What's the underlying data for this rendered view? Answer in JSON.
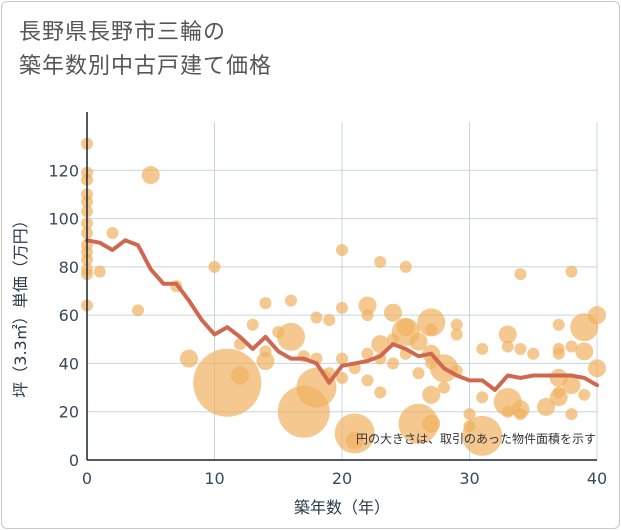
{
  "chart_data": {
    "type": "scatter",
    "title_line1": "長野県長野市三輪の",
    "title_line2": "築年数別中古戸建て価格",
    "xlabel": "築年数（年）",
    "ylabel": "坪（3.3㎡）単価（万円）",
    "xlim": [
      0,
      40
    ],
    "ylim": [
      0,
      140
    ],
    "xticks": [
      "0",
      "10",
      "20",
      "30",
      "40"
    ],
    "yticks": [
      "0",
      "20",
      "40",
      "60",
      "80",
      "100",
      "120"
    ],
    "grid": true,
    "note": "円の大きさは、取引のあった物件面積を示す",
    "colors": {
      "bubble": "#f0b060",
      "line": "#d06850",
      "grid": "#c8d4e0"
    },
    "scatter_points": [
      {
        "x": 0,
        "y": 131,
        "s": 1
      },
      {
        "x": 0,
        "y": 119,
        "s": 1
      },
      {
        "x": 0,
        "y": 116,
        "s": 1
      },
      {
        "x": 0,
        "y": 110,
        "s": 1
      },
      {
        "x": 0,
        "y": 107,
        "s": 1
      },
      {
        "x": 0,
        "y": 103,
        "s": 1
      },
      {
        "x": 0,
        "y": 98,
        "s": 1
      },
      {
        "x": 0,
        "y": 94,
        "s": 1
      },
      {
        "x": 0,
        "y": 89,
        "s": 1
      },
      {
        "x": 0,
        "y": 86,
        "s": 1
      },
      {
        "x": 0,
        "y": 83,
        "s": 1
      },
      {
        "x": 0,
        "y": 79,
        "s": 1
      },
      {
        "x": 0,
        "y": 77,
        "s": 1
      },
      {
        "x": 0,
        "y": 64,
        "s": 1
      },
      {
        "x": 1,
        "y": 78,
        "s": 1
      },
      {
        "x": 2,
        "y": 94,
        "s": 1
      },
      {
        "x": 4,
        "y": 62,
        "s": 1
      },
      {
        "x": 5,
        "y": 118,
        "s": 2
      },
      {
        "x": 7,
        "y": 72,
        "s": 1
      },
      {
        "x": 8,
        "y": 42,
        "s": 2
      },
      {
        "x": 10,
        "y": 80,
        "s": 1
      },
      {
        "x": 11,
        "y": 32,
        "s": 6
      },
      {
        "x": 12,
        "y": 35,
        "s": 2
      },
      {
        "x": 12,
        "y": 48,
        "s": 1
      },
      {
        "x": 13,
        "y": 56,
        "s": 1
      },
      {
        "x": 14,
        "y": 65,
        "s": 1
      },
      {
        "x": 14,
        "y": 41,
        "s": 2
      },
      {
        "x": 14,
        "y": 45,
        "s": 1
      },
      {
        "x": 15,
        "y": 53,
        "s": 1
      },
      {
        "x": 16,
        "y": 51,
        "s": 3
      },
      {
        "x": 16,
        "y": 66,
        "s": 1
      },
      {
        "x": 17,
        "y": 20,
        "s": 5
      },
      {
        "x": 17,
        "y": 43,
        "s": 1
      },
      {
        "x": 18,
        "y": 30,
        "s": 4
      },
      {
        "x": 18,
        "y": 42,
        "s": 1
      },
      {
        "x": 18,
        "y": 59,
        "s": 1
      },
      {
        "x": 19,
        "y": 58,
        "s": 1
      },
      {
        "x": 19,
        "y": 36,
        "s": 1
      },
      {
        "x": 20,
        "y": 87,
        "s": 1
      },
      {
        "x": 20,
        "y": 63,
        "s": 1
      },
      {
        "x": 20,
        "y": 42,
        "s": 1
      },
      {
        "x": 20,
        "y": 34,
        "s": 1
      },
      {
        "x": 21,
        "y": 11,
        "s": 4
      },
      {
        "x": 21,
        "y": 8,
        "s": 2
      },
      {
        "x": 21,
        "y": 38,
        "s": 1
      },
      {
        "x": 22,
        "y": 64,
        "s": 2
      },
      {
        "x": 22,
        "y": 60,
        "s": 1
      },
      {
        "x": 22,
        "y": 44,
        "s": 1
      },
      {
        "x": 22,
        "y": 33,
        "s": 1
      },
      {
        "x": 23,
        "y": 82,
        "s": 1
      },
      {
        "x": 23,
        "y": 48,
        "s": 2
      },
      {
        "x": 23,
        "y": 42,
        "s": 1
      },
      {
        "x": 23,
        "y": 28,
        "s": 1
      },
      {
        "x": 24,
        "y": 61,
        "s": 2
      },
      {
        "x": 24,
        "y": 50,
        "s": 1
      },
      {
        "x": 24,
        "y": 40,
        "s": 1
      },
      {
        "x": 25,
        "y": 80,
        "s": 1
      },
      {
        "x": 25,
        "y": 55,
        "s": 2
      },
      {
        "x": 25,
        "y": 53,
        "s": 3
      },
      {
        "x": 25,
        "y": 44,
        "s": 1
      },
      {
        "x": 26,
        "y": 49,
        "s": 2
      },
      {
        "x": 26,
        "y": 36,
        "s": 1
      },
      {
        "x": 26,
        "y": 15,
        "s": 4
      },
      {
        "x": 27,
        "y": 57,
        "s": 3
      },
      {
        "x": 27,
        "y": 54,
        "s": 1
      },
      {
        "x": 27,
        "y": 44,
        "s": 2
      },
      {
        "x": 27,
        "y": 40,
        "s": 1
      },
      {
        "x": 27,
        "y": 27,
        "s": 2
      },
      {
        "x": 27,
        "y": 15,
        "s": 2
      },
      {
        "x": 28,
        "y": 38,
        "s": 3
      },
      {
        "x": 28,
        "y": 30,
        "s": 1
      },
      {
        "x": 29,
        "y": 56,
        "s": 1
      },
      {
        "x": 29,
        "y": 52,
        "s": 1
      },
      {
        "x": 29,
        "y": 37,
        "s": 1
      },
      {
        "x": 30,
        "y": 19,
        "s": 1
      },
      {
        "x": 30,
        "y": 14,
        "s": 1
      },
      {
        "x": 31,
        "y": 10,
        "s": 4
      },
      {
        "x": 31,
        "y": 46,
        "s": 1
      },
      {
        "x": 31,
        "y": 26,
        "s": 1
      },
      {
        "x": 33,
        "y": 52,
        "s": 2
      },
      {
        "x": 33,
        "y": 47,
        "s": 1
      },
      {
        "x": 33,
        "y": 24,
        "s": 3
      },
      {
        "x": 33,
        "y": 20,
        "s": 1
      },
      {
        "x": 34,
        "y": 77,
        "s": 1
      },
      {
        "x": 34,
        "y": 46,
        "s": 1
      },
      {
        "x": 34,
        "y": 21,
        "s": 2
      },
      {
        "x": 34,
        "y": 19,
        "s": 1
      },
      {
        "x": 35,
        "y": 44,
        "s": 1
      },
      {
        "x": 36,
        "y": 22,
        "s": 2
      },
      {
        "x": 37,
        "y": 56,
        "s": 1
      },
      {
        "x": 37,
        "y": 46,
        "s": 1
      },
      {
        "x": 37,
        "y": 44,
        "s": 1
      },
      {
        "x": 37,
        "y": 34,
        "s": 2
      },
      {
        "x": 37,
        "y": 28,
        "s": 1
      },
      {
        "x": 37,
        "y": 26,
        "s": 2
      },
      {
        "x": 38,
        "y": 78,
        "s": 1
      },
      {
        "x": 38,
        "y": 47,
        "s": 1
      },
      {
        "x": 38,
        "y": 31,
        "s": 2
      },
      {
        "x": 38,
        "y": 19,
        "s": 1
      },
      {
        "x": 39,
        "y": 55,
        "s": 3
      },
      {
        "x": 39,
        "y": 45,
        "s": 2
      },
      {
        "x": 39,
        "y": 27,
        "s": 1
      },
      {
        "x": 40,
        "y": 60,
        "s": 2
      },
      {
        "x": 40,
        "y": 38,
        "s": 2
      }
    ],
    "line_series": {
      "x": [
        0,
        1,
        2,
        3,
        4,
        5,
        6,
        7,
        8,
        9,
        10,
        11,
        12,
        13,
        14,
        15,
        16,
        17,
        18,
        19,
        20,
        21,
        22,
        23,
        24,
        25,
        26,
        27,
        28,
        29,
        30,
        31,
        32,
        33,
        34,
        35,
        36,
        37,
        38,
        39,
        40
      ],
      "y": [
        91,
        90,
        87,
        91,
        89,
        79,
        73,
        73,
        66,
        58,
        52,
        55,
        51,
        46,
        51,
        45,
        42,
        42,
        40,
        32,
        39,
        40,
        41,
        43,
        48,
        46,
        43,
        44,
        38,
        35,
        33,
        33,
        29,
        35,
        34,
        35,
        35,
        35,
        35,
        34,
        31
      ]
    }
  }
}
